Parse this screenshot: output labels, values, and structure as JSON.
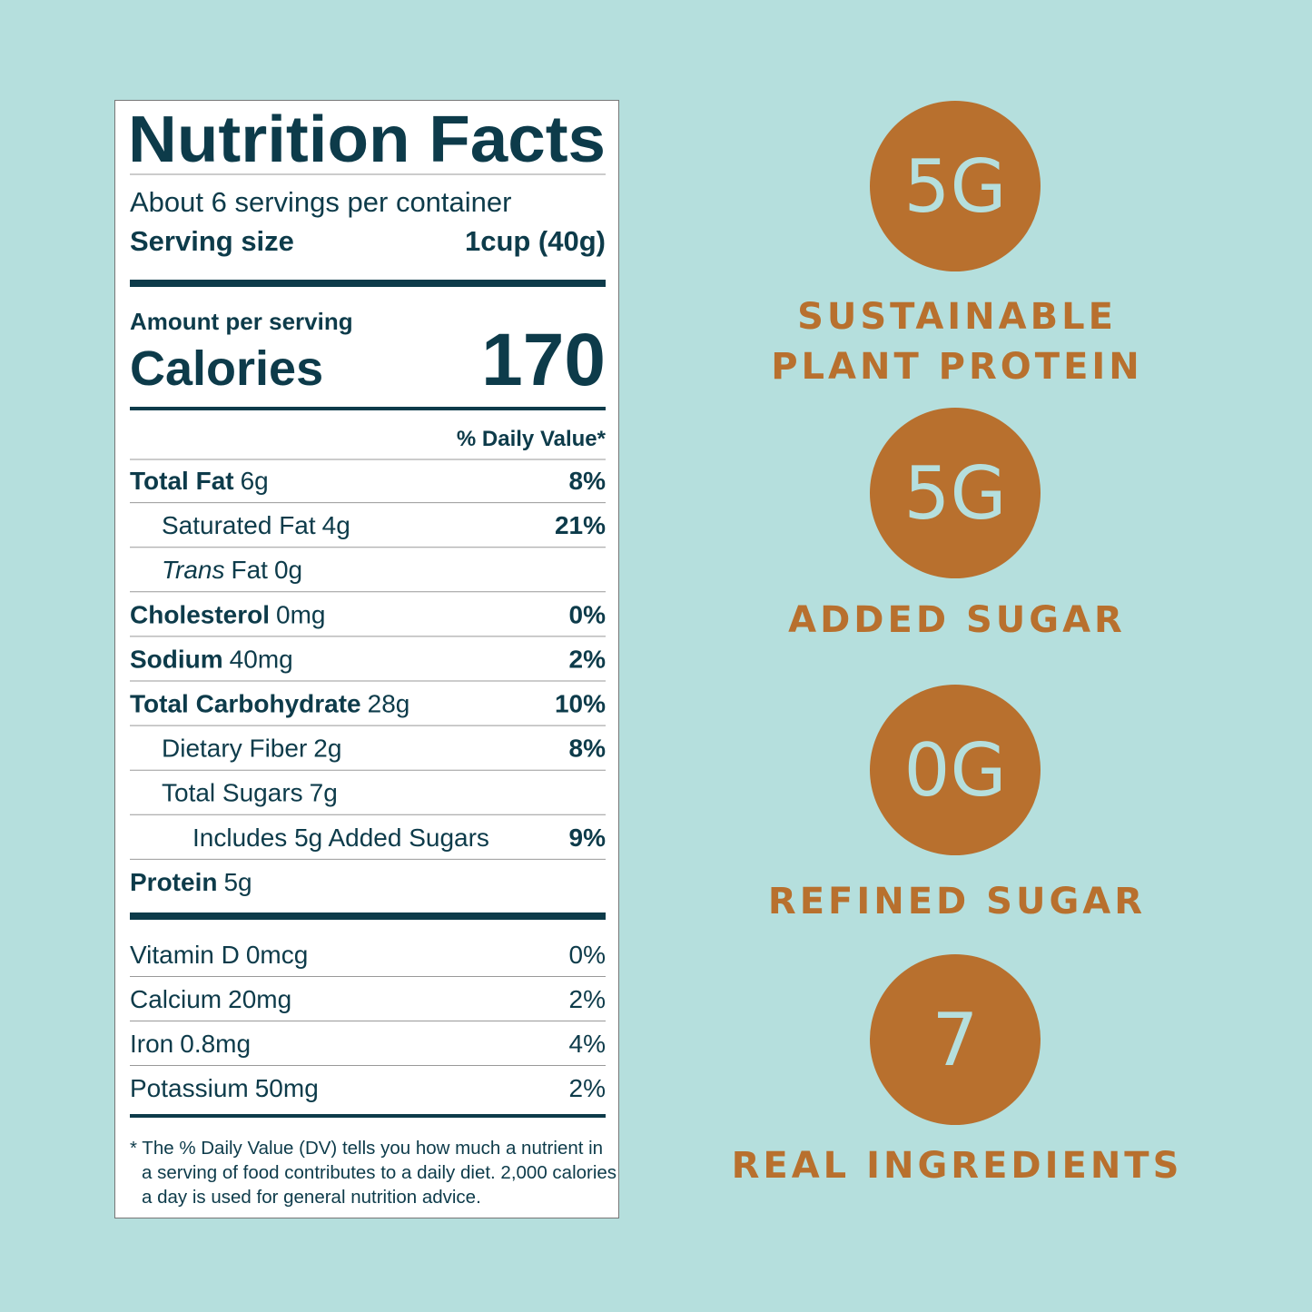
{
  "label": {
    "title": "Nutrition Facts",
    "servings": "About 6 servings per container",
    "serving_size_label": "Serving size",
    "serving_size": "1cup (40g)",
    "amount_per_serving": "Amount per serving",
    "calories_label": "Calories",
    "calories": "170",
    "daily_value_header": "% Daily Value*",
    "nutrients": [
      {
        "name": "Total Fat",
        "amount": "6g",
        "dv": "8%",
        "sub": [
          {
            "name": "Saturated Fat",
            "amount": "4g",
            "dv": "21%"
          },
          {
            "name_italic": "Trans",
            "name": "Fat",
            "amount": "0g"
          }
        ]
      },
      {
        "name": "Cholesterol",
        "amount": "0mg",
        "dv": "0%"
      },
      {
        "name": "Sodium",
        "amount": "40mg",
        "dv": "2%"
      },
      {
        "name": "Total Carbohydrate",
        "amount": "28g",
        "dv": "10%",
        "sub": [
          {
            "name": "Dietary Fiber",
            "amount": "2g",
            "dv": "8%"
          },
          {
            "name": "Total Sugars",
            "amount": "7g",
            "sub": [
              {
                "name": "Includes 5g Added Sugars",
                "dv": "9%"
              }
            ]
          }
        ]
      },
      {
        "name": "Protein",
        "amount": "5g"
      }
    ],
    "vitamins": [
      {
        "name": "Vitamin D",
        "amount": "0mcg",
        "dv": "0%"
      },
      {
        "name": "Calcium",
        "amount": "20mg",
        "dv": "2%"
      },
      {
        "name": "Iron",
        "amount": "0.8mg",
        "dv": "4%"
      },
      {
        "name": "Potassium",
        "amount": "50mg",
        "dv": "2%"
      }
    ],
    "footnote": [
      "* The % Daily Value (DV) tells you how much a nutrient in",
      "a serving of food contributes to a daily diet. 2,000 calories",
      "a day is used for general nutrition advice."
    ]
  },
  "badges": [
    {
      "value": "5G",
      "label": [
        "SUSTAINABLE",
        "PLANT PROTEIN"
      ]
    },
    {
      "value": "5G",
      "label": [
        "ADDED SUGAR"
      ]
    },
    {
      "value": "0G",
      "label": [
        "REFINED SUGAR"
      ]
    },
    {
      "value": "7",
      "label": [
        "REAL INGREDIENTS"
      ]
    }
  ]
}
